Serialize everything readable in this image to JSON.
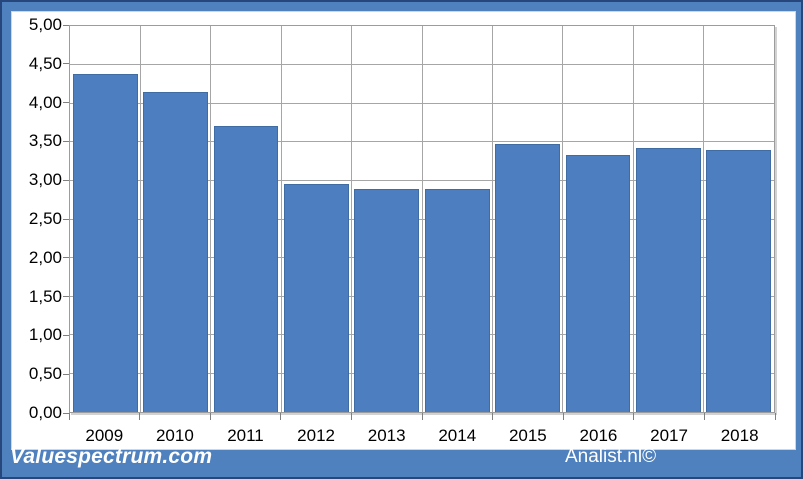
{
  "chart_data": {
    "type": "bar",
    "categories": [
      "2009",
      "2010",
      "2011",
      "2012",
      "2013",
      "2014",
      "2015",
      "2016",
      "2017",
      "2018"
    ],
    "values": [
      4.38,
      4.15,
      3.7,
      2.95,
      2.89,
      2.89,
      3.47,
      3.33,
      3.42,
      3.39
    ],
    "title": "",
    "xlabel": "",
    "ylabel": "",
    "ylim": [
      0,
      5
    ],
    "y_tick_step": 0.5,
    "y_tick_labels": [
      "5,00",
      "4,50",
      "4,00",
      "3,50",
      "3,00",
      "2,50",
      "2,00",
      "1,50",
      "1,00",
      "0,50",
      "0,00"
    ],
    "grid": true,
    "legend": false,
    "bar_color": "#4d7ebf"
  },
  "footer": {
    "left_brand": "Valuespectrum.com",
    "right_brand": "Analist.nl©"
  },
  "colors": {
    "frame_blue": "#4e81be",
    "frame_dark_edge": "#27477c",
    "bar_blue": "#4d7ebf",
    "gridline_gray": "#a6a6a6",
    "plot_border_gray": "#9c9c9c",
    "axis_text": "#000000",
    "footer_text": "#ffffff"
  }
}
